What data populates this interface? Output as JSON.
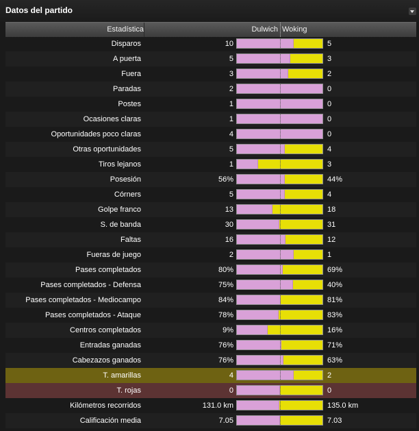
{
  "panel": {
    "title": "Datos del partido",
    "collapse_icon": "chevron-down-icon"
  },
  "header": {
    "stat": "Estadística",
    "home": "Dulwich",
    "away": "Woking"
  },
  "colors": {
    "home_bar": "#d9a1d8",
    "away_bar": "#e7df06",
    "yellow_card_row": "#6e6212",
    "red_card_row": "#5c3333"
  },
  "rows": [
    {
      "label": "Disparos",
      "home": "10",
      "away": "5",
      "home_share": 0.667
    },
    {
      "label": "A puerta",
      "home": "5",
      "away": "3",
      "home_share": 0.625
    },
    {
      "label": "Fuera",
      "home": "3",
      "away": "2",
      "home_share": 0.6
    },
    {
      "label": "Paradas",
      "home": "2",
      "away": "0",
      "home_share": 1.0
    },
    {
      "label": "Postes",
      "home": "1",
      "away": "0",
      "home_share": 1.0
    },
    {
      "label": "Ocasiones claras",
      "home": "1",
      "away": "0",
      "home_share": 1.0
    },
    {
      "label": "Oportunidades poco claras",
      "home": "4",
      "away": "0",
      "home_share": 1.0
    },
    {
      "label": "Otras oportunidades",
      "home": "5",
      "away": "4",
      "home_share": 0.556
    },
    {
      "label": "Tiros lejanos",
      "home": "1",
      "away": "3",
      "home_share": 0.25
    },
    {
      "label": "Posesión",
      "home": "56%",
      "away": "44%",
      "home_share": 0.56
    },
    {
      "label": "Córners",
      "home": "5",
      "away": "4",
      "home_share": 0.556
    },
    {
      "label": "Golpe franco",
      "home": "13",
      "away": "18",
      "home_share": 0.419
    },
    {
      "label": "S. de banda",
      "home": "30",
      "away": "31",
      "home_share": 0.492
    },
    {
      "label": "Faltas",
      "home": "16",
      "away": "12",
      "home_share": 0.571
    },
    {
      "label": "Fueras de juego",
      "home": "2",
      "away": "1",
      "home_share": 0.667
    },
    {
      "label": "Pases completados",
      "home": "80%",
      "away": "69%",
      "home_share": 0.537
    },
    {
      "label": "Pases completados - Defensa",
      "home": "75%",
      "away": "40%",
      "home_share": 0.652
    },
    {
      "label": "Pases completados - Mediocampo",
      "home": "84%",
      "away": "81%",
      "home_share": 0.509
    },
    {
      "label": "Pases completados - Ataque",
      "home": "78%",
      "away": "83%",
      "home_share": 0.484
    },
    {
      "label": "Centros completados",
      "home": "9%",
      "away": "16%",
      "home_share": 0.36
    },
    {
      "label": "Entradas ganadas",
      "home": "76%",
      "away": "71%",
      "home_share": 0.517
    },
    {
      "label": "Cabezazos ganados",
      "home": "76%",
      "away": "63%",
      "home_share": 0.547
    },
    {
      "label": "T. amarillas",
      "home": "4",
      "away": "2",
      "home_share": 0.667,
      "highlight": "yellow"
    },
    {
      "label": "T. rojas",
      "home": "0",
      "away": "0",
      "home_share": 0.5,
      "highlight": "red"
    },
    {
      "label": "Kilómetros recorridos",
      "home": "131.0 km",
      "away": "135.0 km",
      "home_share": 0.492
    },
    {
      "label": "Calificación media",
      "home": "7.05",
      "away": "7.03",
      "home_share": 0.501
    }
  ]
}
